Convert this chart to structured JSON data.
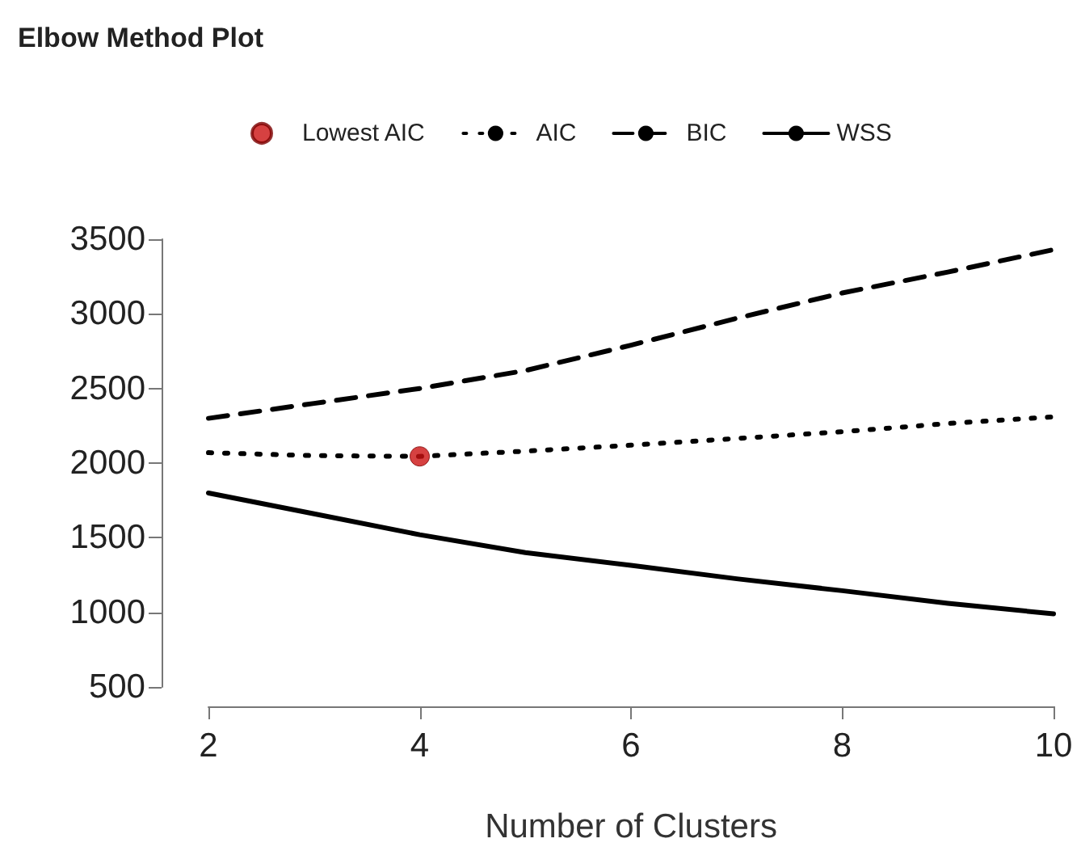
{
  "chart_data": {
    "type": "line",
    "title": "Elbow Method Plot",
    "xlabel": "Number of Clusters",
    "x": [
      2,
      3,
      4,
      5,
      6,
      7,
      8,
      9,
      10
    ],
    "series": [
      {
        "name": "Lowest AIC",
        "type": "scatter",
        "x": [
          4
        ],
        "values": [
          2045
        ],
        "color": "#cc1111",
        "marker": "circle"
      },
      {
        "name": "AIC",
        "values": [
          2070,
          2050,
          2045,
          2080,
          2120,
          2165,
          2210,
          2265,
          2310
        ],
        "color": "#000000",
        "line_style": "dotted",
        "marker": "none"
      },
      {
        "name": "BIC",
        "values": [
          2300,
          2400,
          2500,
          2620,
          2790,
          2970,
          3140,
          3280,
          3430
        ],
        "color": "#000000",
        "line_style": "dashed",
        "marker": "none"
      },
      {
        "name": "WSS",
        "values": [
          1800,
          1660,
          1520,
          1400,
          1315,
          1225,
          1145,
          1060,
          990
        ],
        "color": "#000000",
        "line_style": "solid",
        "marker": "none"
      }
    ],
    "xlim": [
      2,
      10
    ],
    "xticks": [
      2,
      4,
      6,
      8,
      10
    ],
    "ylim": [
      500,
      3500
    ],
    "yticks": [
      500,
      1000,
      1500,
      2000,
      2500,
      3000,
      3500
    ],
    "grid": false,
    "legend": "top"
  }
}
